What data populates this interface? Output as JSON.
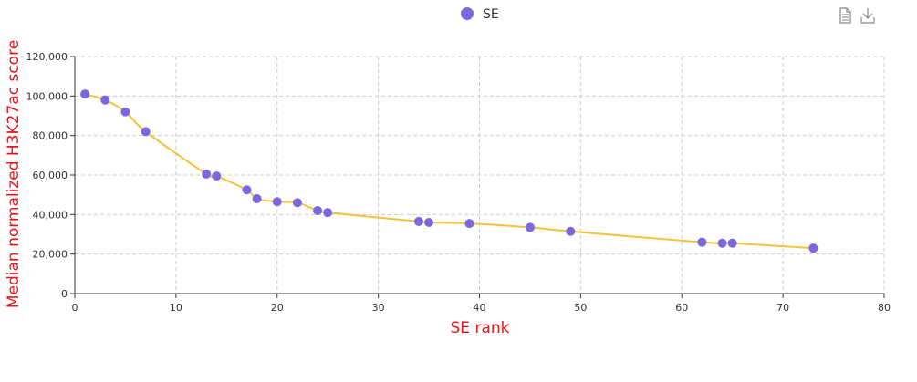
{
  "chart_data": {
    "type": "scatter",
    "xlabel": "SE rank",
    "ylabel": "Median normalized H3K27ac score",
    "xlim": [
      0,
      80
    ],
    "ylim": [
      0,
      120000
    ],
    "x_ticks": [
      0,
      10,
      20,
      30,
      40,
      50,
      60,
      70,
      80
    ],
    "y_ticks": [
      0,
      20000,
      40000,
      60000,
      80000,
      100000,
      120000
    ],
    "x_tick_labels": [
      "0",
      "10",
      "20",
      "30",
      "40",
      "50",
      "60",
      "70",
      "80"
    ],
    "y_tick_labels": [
      "0",
      "20,000",
      "40,000",
      "60,000",
      "80,000",
      "100,000",
      "120,000"
    ],
    "grid": true,
    "legend_position": "top-center",
    "series": [
      {
        "name": "SE",
        "color": "#7b68e0",
        "points": [
          [
            1,
            101000
          ],
          [
            3,
            98000
          ],
          [
            5,
            92000
          ],
          [
            7,
            82000
          ],
          [
            13,
            60500
          ],
          [
            14,
            59500
          ],
          [
            17,
            52500
          ],
          [
            18,
            48000
          ],
          [
            20,
            46500
          ],
          [
            22,
            46000
          ],
          [
            24,
            42000
          ],
          [
            25,
            41000
          ],
          [
            34,
            36500
          ],
          [
            35,
            36000
          ],
          [
            39,
            35500
          ],
          [
            45,
            33500
          ],
          [
            49,
            31500
          ],
          [
            62,
            26000
          ],
          [
            64,
            25500
          ],
          [
            65,
            25500
          ],
          [
            73,
            23000
          ]
        ]
      }
    ],
    "fit_line": {
      "color": "#f5c23a",
      "points": [
        [
          1,
          101000
        ],
        [
          3,
          98000
        ],
        [
          5,
          92000
        ],
        [
          7,
          82000
        ],
        [
          13,
          60500
        ],
        [
          14,
          59500
        ],
        [
          17,
          52500
        ],
        [
          18,
          48000
        ],
        [
          20,
          46500
        ],
        [
          22,
          46000
        ],
        [
          24,
          42000
        ],
        [
          25,
          41000
        ],
        [
          34,
          36500
        ],
        [
          35,
          36000
        ],
        [
          39,
          35500
        ],
        [
          45,
          33500
        ],
        [
          49,
          31500
        ],
        [
          62,
          26000
        ],
        [
          64,
          25500
        ],
        [
          65,
          25500
        ],
        [
          73,
          23000
        ]
      ]
    },
    "colors": {
      "axis_title": "#e8141b",
      "grid": "#cccccc",
      "axis": "#333333"
    }
  },
  "toolbox": {
    "data_view_icon": "document-icon",
    "save_icon": "download-icon"
  }
}
